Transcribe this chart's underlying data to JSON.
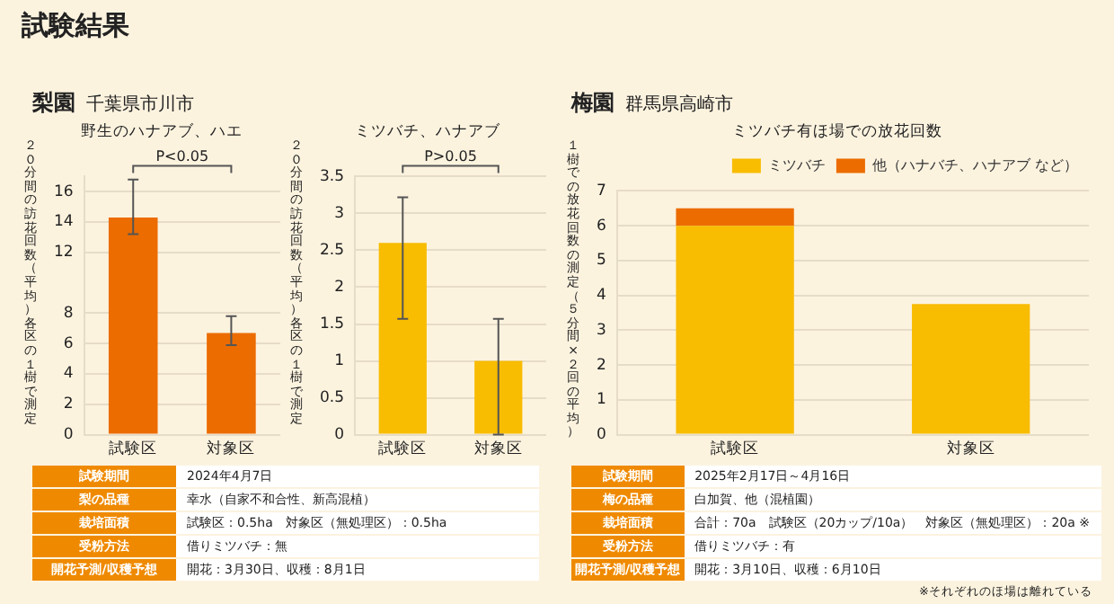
{
  "chart_data": [
    {
      "type": "other",
      "title": "試験結果"
    },
    {
      "type": "other",
      "title": "梨園",
      "subtitle": "千葉県市川市"
    },
    {
      "type": "bar",
      "title": "野生のハナアブ、ハエ",
      "ylabel": "２０分間の訪花回数（平均）各区の１樹で測定",
      "categories": [
        "試験区",
        "対象区"
      ],
      "values": [
        14.3,
        6.7
      ],
      "errors": [
        [
          13.2,
          16.8
        ],
        [
          5.9,
          7.8
        ]
      ],
      "color": "#ec6c00",
      "ylim": [
        0,
        17
      ],
      "yticks": [
        0,
        2,
        4,
        6,
        8,
        12,
        14,
        16
      ],
      "grid": "y",
      "legend": false,
      "annotations": [
        "P<0.05"
      ]
    },
    {
      "type": "bar",
      "title": "ミツバチ、ハナアブ",
      "ylabel": "２０分間の訪花回数（平均）各区の１樹で測定",
      "categories": [
        "試験区",
        "対象区"
      ],
      "values": [
        2.6,
        1.0
      ],
      "errors": [
        [
          1.57,
          3.22
        ],
        [
          0,
          1.57
        ]
      ],
      "color": "#f8bc00",
      "ylim": [
        0,
        3.5
      ],
      "yticks": [
        0,
        0.5,
        1.0,
        1.5,
        2.0,
        2.5,
        3.0,
        3.5
      ],
      "grid": "y",
      "legend": false,
      "annotations": [
        "P>0.05"
      ]
    },
    {
      "type": "other",
      "annotations": [
        "試験期間",
        "2024年4月7日",
        "梨の品種",
        "幸水（自家不和合性、新高混植）",
        "栽培面積",
        "試験区：0.5ha　対象区（無処理区）：0.5ha",
        "受粉方法",
        "借りミツバチ：無",
        "開花予測/収穫予想",
        "開花：3月30日、収穫：8月1日"
      ]
    },
    {
      "type": "other",
      "title": "梅園",
      "subtitle": "群馬県高崎市"
    },
    {
      "type": "bar",
      "title": "ミツバチ有ほ場での放花回数",
      "ylabel": "１樹での放花回数の測定（５分間×２回の平均）",
      "categories": [
        "試験区",
        "対象区"
      ],
      "stacked": true,
      "series": [
        {
          "name": "ミツバチ",
          "color": "#f8bc00",
          "values": [
            6.0,
            3.75
          ]
        },
        {
          "name": "他（ハナバチ、ハナアブ など）",
          "color": "#ec6c00",
          "values": [
            0.5,
            null
          ]
        }
      ],
      "ylim": [
        0,
        7
      ],
      "yticks": [
        0,
        1,
        2,
        3,
        4,
        5,
        6,
        7
      ],
      "grid": "y",
      "legend": "top right"
    },
    {
      "type": "other",
      "annotations": [
        "試験期間",
        "2025年2月17日～4月16日",
        "梅の品種",
        "白加賀、他（混植園）",
        "栽培面積",
        "合計：70a　試験区（20カップ/10a）　対象区（無処理区）：20a ※",
        "受粉方法",
        "借りミツバチ：有",
        "開花予測/収穫予想",
        "開花：3月10日、収穫：6月10日",
        "※それぞれのほ場は離れている"
      ]
    }
  ]
}
